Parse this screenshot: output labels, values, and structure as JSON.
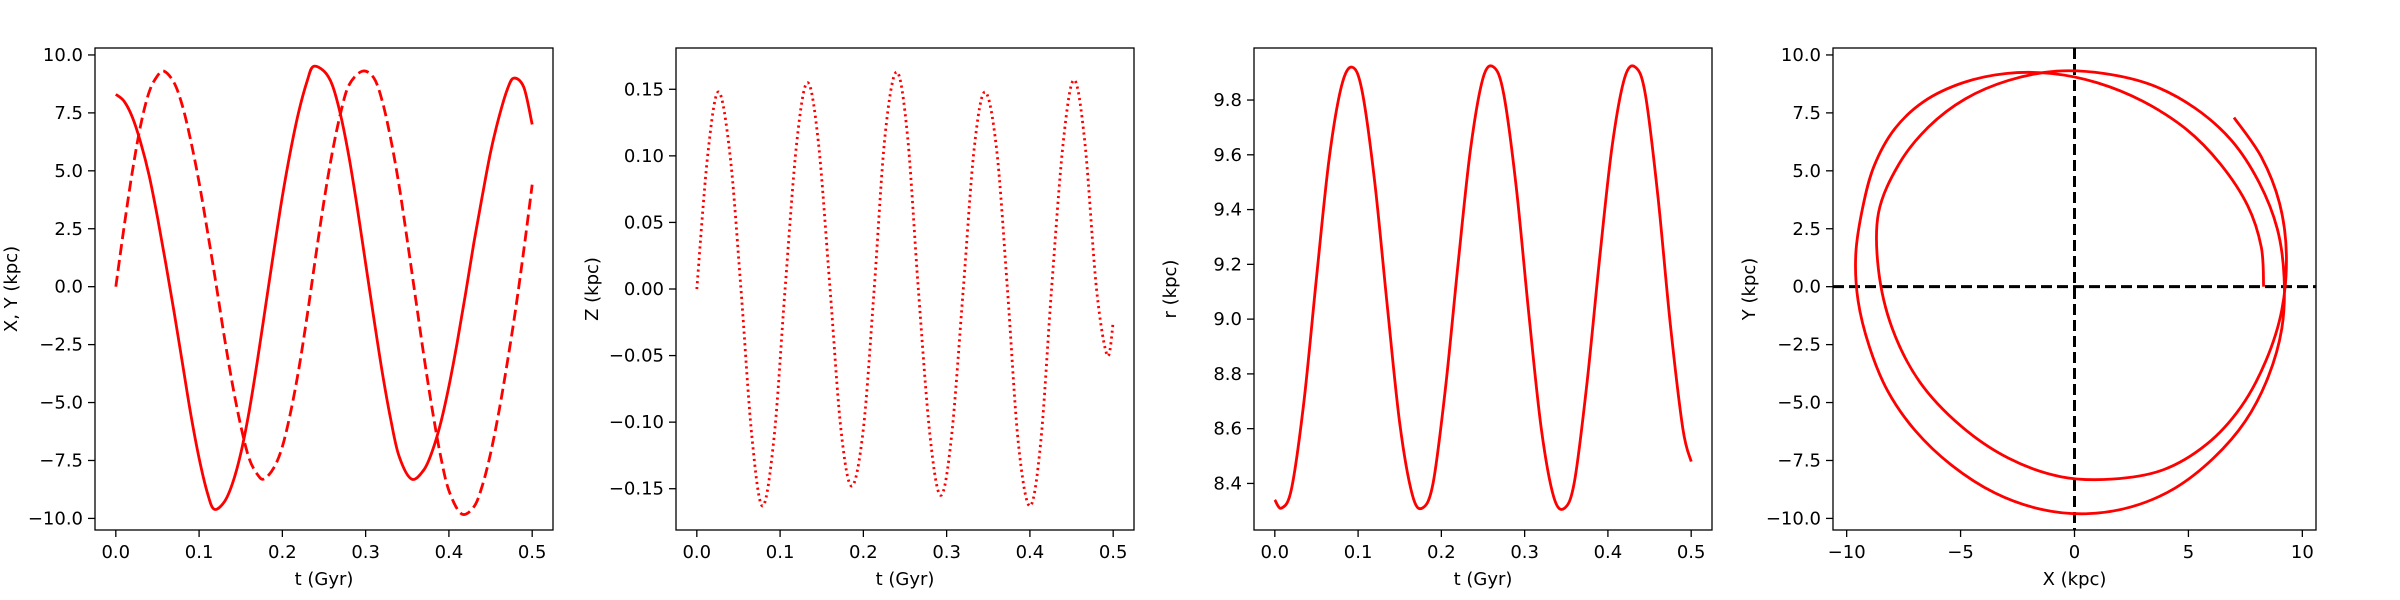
{
  "chart_data": [
    {
      "type": "line",
      "xlabel": "t (Gyr)",
      "ylabel": "X, Y (kpc)",
      "xlim": [
        -0.025,
        0.525
      ],
      "ylim": [
        -10.5,
        10.3
      ],
      "xticks": [
        0.0,
        0.1,
        0.2,
        0.3,
        0.4,
        0.5
      ],
      "xtick_labels": [
        "0.0",
        "0.1",
        "0.2",
        "0.3",
        "0.4",
        "0.5"
      ],
      "yticks": [
        -10.0,
        -7.5,
        -5.0,
        -2.5,
        0.0,
        2.5,
        5.0,
        7.5,
        10.0
      ],
      "ytick_labels": [
        "−10.0",
        "−7.5",
        "−5.0",
        "−2.5",
        "0.0",
        "2.5",
        "5.0",
        "7.5",
        "10.0"
      ],
      "series": [
        {
          "style": "solid",
          "color": "#ff0000",
          "x": [
            0.0,
            0.01,
            0.02,
            0.03,
            0.04,
            0.05,
            0.06,
            0.07,
            0.08,
            0.09,
            0.1,
            0.11,
            0.118,
            0.13,
            0.14,
            0.15,
            0.16,
            0.17,
            0.18,
            0.19,
            0.2,
            0.21,
            0.22,
            0.23,
            0.237,
            0.25,
            0.26,
            0.27,
            0.28,
            0.29,
            0.3,
            0.31,
            0.32,
            0.33,
            0.34,
            0.355,
            0.37,
            0.38,
            0.39,
            0.4,
            0.41,
            0.42,
            0.43,
            0.44,
            0.45,
            0.46,
            0.47,
            0.478,
            0.49,
            0.5
          ],
          "y": [
            8.3,
            8.0,
            7.3,
            6.2,
            4.8,
            3.0,
            1.0,
            -1.1,
            -3.3,
            -5.5,
            -7.4,
            -8.9,
            -9.6,
            -9.3,
            -8.5,
            -7.2,
            -5.4,
            -3.2,
            -0.8,
            1.6,
            3.9,
            5.9,
            7.6,
            8.9,
            9.5,
            9.3,
            8.7,
            7.4,
            5.6,
            3.4,
            1.0,
            -1.4,
            -3.7,
            -5.7,
            -7.3,
            -8.3,
            -7.9,
            -7.1,
            -5.9,
            -4.3,
            -2.4,
            -0.3,
            1.9,
            3.9,
            5.8,
            7.3,
            8.5,
            9.0,
            8.6,
            7.0
          ]
        },
        {
          "style": "dashed",
          "color": "#ff0000",
          "x": [
            0.0,
            0.01,
            0.02,
            0.03,
            0.04,
            0.05,
            0.058,
            0.07,
            0.08,
            0.09,
            0.1,
            0.11,
            0.12,
            0.13,
            0.14,
            0.15,
            0.16,
            0.17,
            0.178,
            0.19,
            0.2,
            0.21,
            0.22,
            0.23,
            0.24,
            0.25,
            0.26,
            0.27,
            0.28,
            0.296,
            0.31,
            0.32,
            0.33,
            0.34,
            0.35,
            0.36,
            0.37,
            0.38,
            0.39,
            0.4,
            0.415,
            0.43,
            0.44,
            0.45,
            0.46,
            0.47,
            0.48,
            0.49,
            0.5
          ],
          "y": [
            0.0,
            2.6,
            5.0,
            7.0,
            8.4,
            9.1,
            9.3,
            8.8,
            7.8,
            6.3,
            4.5,
            2.4,
            0.2,
            -2.1,
            -4.2,
            -6.0,
            -7.4,
            -8.1,
            -8.3,
            -7.8,
            -6.9,
            -5.4,
            -3.5,
            -1.2,
            1.3,
            3.7,
            5.8,
            7.5,
            8.7,
            9.3,
            9.0,
            8.0,
            6.4,
            4.4,
            2.0,
            -0.5,
            -3.0,
            -5.3,
            -7.3,
            -8.8,
            -9.8,
            -9.5,
            -8.6,
            -7.2,
            -5.4,
            -3.3,
            -1.0,
            1.6,
            4.4
          ]
        }
      ]
    },
    {
      "type": "line",
      "xlabel": "t (Gyr)",
      "ylabel": "Z (kpc)",
      "xlim": [
        -0.025,
        0.525
      ],
      "ylim": [
        -0.181,
        0.181
      ],
      "xticks": [
        0.0,
        0.1,
        0.2,
        0.3,
        0.4,
        0.5
      ],
      "xtick_labels": [
        "0.0",
        "0.1",
        "0.2",
        "0.3",
        "0.4",
        "0.5"
      ],
      "yticks": [
        -0.15,
        -0.1,
        -0.05,
        0.0,
        0.05,
        0.1,
        0.15
      ],
      "ytick_labels": [
        "−0.15",
        "−0.10",
        "−0.05",
        "0.00",
        "0.05",
        "0.10",
        "0.15"
      ],
      "series": [
        {
          "style": "dotted",
          "color": "#ff0000",
          "x": [
            0.0,
            0.013,
            0.026,
            0.04,
            0.053,
            0.066,
            0.079,
            0.093,
            0.106,
            0.12,
            0.133,
            0.146,
            0.16,
            0.173,
            0.186,
            0.2,
            0.213,
            0.226,
            0.24,
            0.253,
            0.266,
            0.28,
            0.293,
            0.306,
            0.32,
            0.333,
            0.346,
            0.36,
            0.373,
            0.386,
            0.4,
            0.413,
            0.426,
            0.44,
            0.453,
            0.466,
            0.48,
            0.493,
            0.5
          ],
          "y": [
            0.0,
            0.1,
            0.148,
            0.1,
            0.0,
            -0.11,
            -0.163,
            -0.11,
            0.0,
            0.11,
            0.155,
            0.11,
            0.0,
            -0.105,
            -0.148,
            -0.105,
            0.0,
            0.115,
            0.163,
            0.115,
            0.0,
            -0.11,
            -0.155,
            -0.11,
            0.0,
            0.105,
            0.148,
            0.105,
            0.0,
            -0.115,
            -0.163,
            -0.115,
            0.0,
            0.11,
            0.157,
            0.11,
            0.0,
            -0.05,
            -0.025
          ]
        }
      ]
    },
    {
      "type": "line",
      "xlabel": "t (Gyr)",
      "ylabel": "r (kpc)",
      "xlim": [
        -0.025,
        0.525
      ],
      "ylim": [
        8.23,
        9.99
      ],
      "xticks": [
        0.0,
        0.1,
        0.2,
        0.3,
        0.4,
        0.5
      ],
      "xtick_labels": [
        "0.0",
        "0.1",
        "0.2",
        "0.3",
        "0.4",
        "0.5"
      ],
      "yticks": [
        8.4,
        8.6,
        8.8,
        9.0,
        9.2,
        9.4,
        9.6,
        9.8
      ],
      "ytick_labels": [
        "8.4",
        "8.6",
        "8.8",
        "9.0",
        "9.2",
        "9.4",
        "9.6",
        "9.8"
      ],
      "series": [
        {
          "style": "solid",
          "color": "#ff0000",
          "x": [
            0.0,
            0.008,
            0.02,
            0.035,
            0.05,
            0.065,
            0.08,
            0.093,
            0.105,
            0.12,
            0.135,
            0.15,
            0.165,
            0.177,
            0.19,
            0.205,
            0.22,
            0.235,
            0.25,
            0.263,
            0.275,
            0.29,
            0.305,
            0.32,
            0.335,
            0.348,
            0.36,
            0.375,
            0.39,
            0.405,
            0.42,
            0.433,
            0.445,
            0.46,
            0.475,
            0.49,
            0.5
          ],
          "y": [
            8.34,
            8.31,
            8.38,
            8.7,
            9.15,
            9.58,
            9.85,
            9.92,
            9.83,
            9.5,
            9.05,
            8.62,
            8.36,
            8.31,
            8.4,
            8.75,
            9.2,
            9.62,
            9.88,
            9.92,
            9.82,
            9.48,
            9.02,
            8.6,
            8.35,
            8.31,
            8.41,
            8.77,
            9.22,
            9.63,
            9.88,
            9.92,
            9.82,
            9.45,
            8.98,
            8.6,
            8.48
          ]
        }
      ]
    },
    {
      "type": "line",
      "xlabel": "X (kpc)",
      "ylabel": "Y (kpc)",
      "xlim": [
        -10.6,
        10.6
      ],
      "ylim": [
        -10.5,
        10.3
      ],
      "xticks": [
        -10,
        -5,
        0,
        5,
        10
      ],
      "xtick_labels": [
        "−10",
        "−5",
        "0",
        "5",
        "10"
      ],
      "yticks": [
        -10.0,
        -7.5,
        -5.0,
        -2.5,
        0.0,
        2.5,
        5.0,
        7.5,
        10.0
      ],
      "ytick_labels": [
        "−10.0",
        "−7.5",
        "−5.0",
        "−2.5",
        "0.0",
        "2.5",
        "5.0",
        "7.5",
        "10.0"
      ],
      "reference_lines": [
        {
          "orientation": "horizontal",
          "value": 0,
          "style": "dashed",
          "color": "#000000"
        },
        {
          "orientation": "vertical",
          "value": 0,
          "style": "dashed",
          "color": "#000000"
        }
      ],
      "series": [
        {
          "style": "solid",
          "color": "#ff0000",
          "x": [
            8.3,
            8.2,
            7.6,
            6.4,
            4.9,
            3.0,
            1.0,
            -1.0,
            -3.0,
            -4.9,
            -6.6,
            -7.9,
            -8.8,
            -9.3,
            -9.6,
            -9.5,
            -9.0,
            -8.2,
            -7.0,
            -5.4,
            -3.5,
            -1.5,
            0.5,
            2.5,
            4.4,
            6.1,
            7.5,
            8.5,
            9.1,
            9.2,
            8.9,
            8.1,
            6.9,
            5.3,
            3.4,
            1.3,
            -0.8,
            -2.9,
            -4.8,
            -6.4,
            -7.7,
            -8.6,
            -8.6,
            -8.0,
            -6.8,
            -5.0,
            -2.9,
            -0.6,
            1.7,
            3.9,
            5.8,
            7.3,
            8.4,
            9.1,
            9.3,
            9.0,
            8.2,
            7.0
          ],
          "y": [
            0.0,
            1.7,
            3.5,
            5.3,
            6.8,
            8.0,
            8.8,
            9.2,
            9.2,
            8.8,
            8.0,
            6.8,
            5.2,
            3.4,
            1.4,
            -0.6,
            -2.6,
            -4.5,
            -6.2,
            -7.7,
            -8.9,
            -9.6,
            -9.8,
            -9.5,
            -8.7,
            -7.4,
            -5.8,
            -3.9,
            -1.8,
            0.4,
            2.5,
            4.5,
            6.3,
            7.7,
            8.7,
            9.2,
            9.3,
            8.9,
            8.1,
            6.9,
            5.3,
            3.2,
            0.7,
            -1.8,
            -4.1,
            -6.0,
            -7.4,
            -8.2,
            -8.3,
            -7.9,
            -6.8,
            -5.2,
            -3.2,
            -1.0,
            1.4,
            3.6,
            5.6,
            7.3
          ]
        }
      ]
    }
  ]
}
